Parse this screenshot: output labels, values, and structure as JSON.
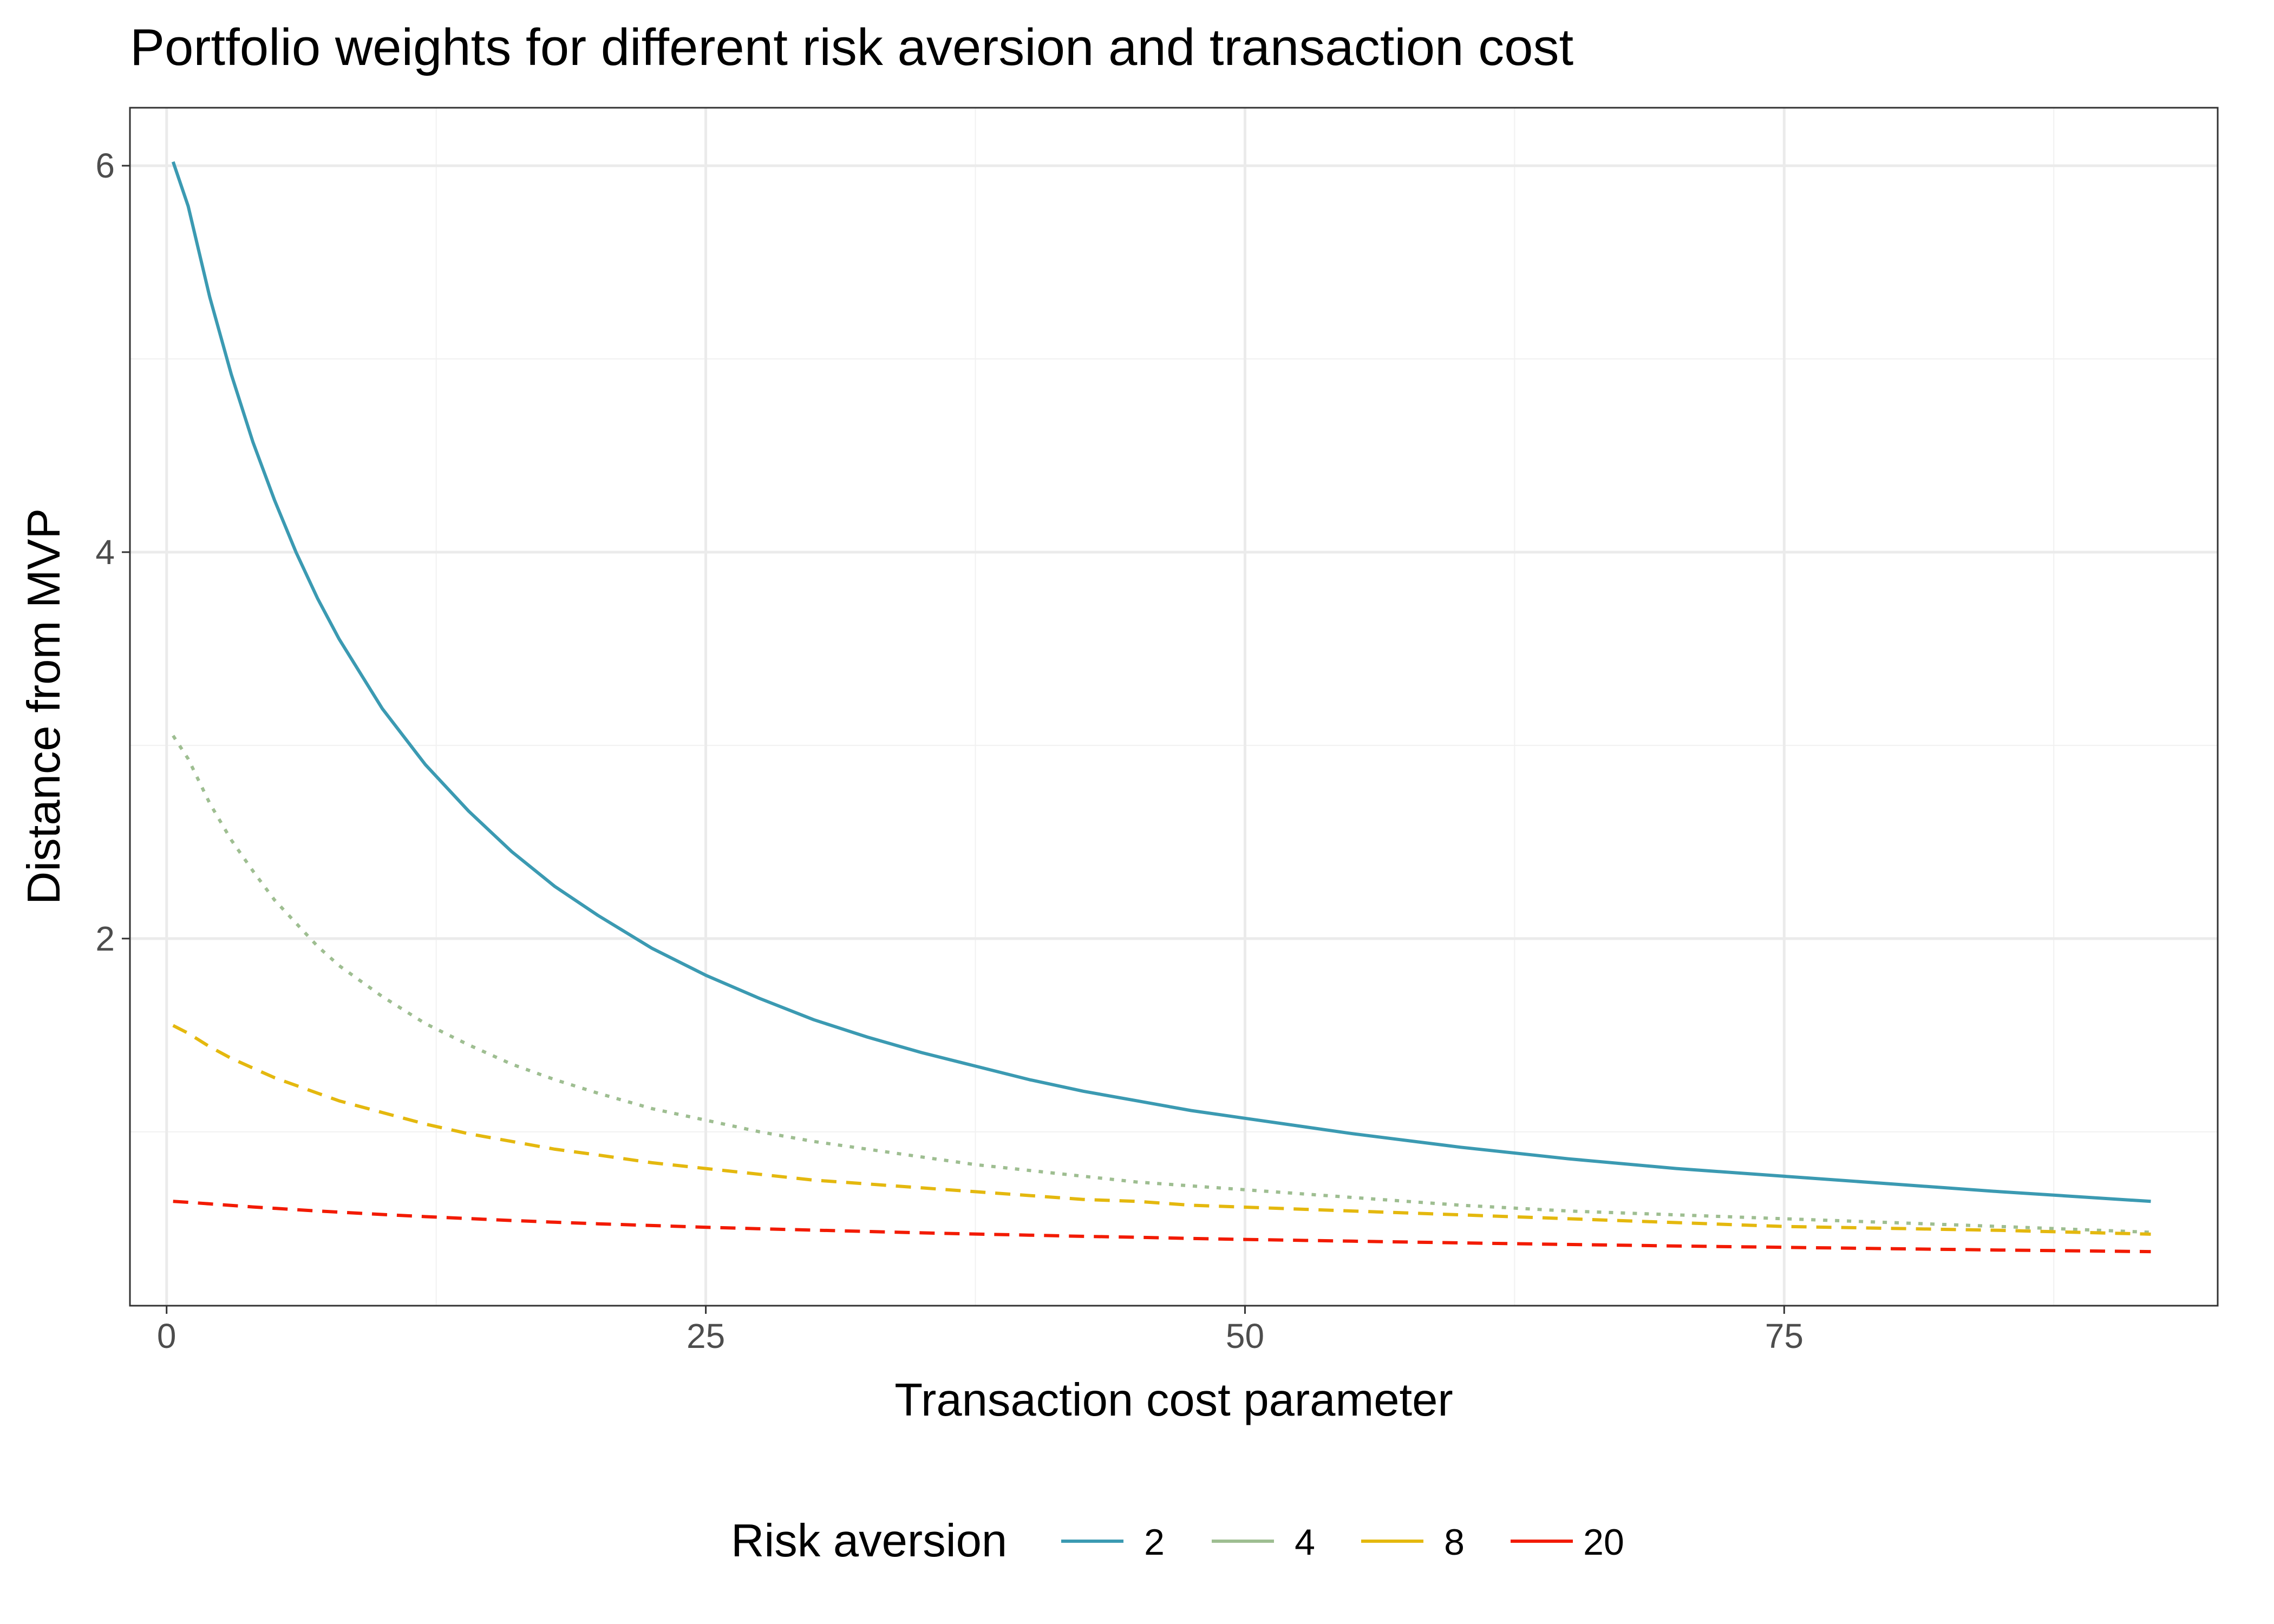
{
  "chart_data": {
    "type": "line",
    "title": "Portfolio weights for different risk aversion and transaction cost",
    "xlabel": "Transaction cost parameter",
    "ylabel": "Distance from MVP",
    "xlim": [
      -1.7,
      95.1
    ],
    "ylim": [
      0.1,
      6.3
    ],
    "x_ticks": [
      0,
      25,
      50,
      75
    ],
    "y_ticks": [
      2,
      4,
      6
    ],
    "grid": true,
    "legend": {
      "title": "Risk aversion",
      "position": "bottom"
    },
    "x": [
      0.3,
      1,
      2,
      3,
      4,
      5,
      6,
      7,
      8,
      10,
      12,
      14,
      16,
      18,
      20,
      22.5,
      25,
      27.5,
      30,
      32.5,
      35,
      37.5,
      40,
      42.5,
      45,
      47.5,
      50,
      55,
      60,
      65,
      70,
      75,
      80,
      85,
      92
    ],
    "series": [
      {
        "name": "2",
        "color": "#3b9ab2",
        "dash": "solid",
        "values": [
          6.02,
          5.79,
          5.32,
          4.92,
          4.57,
          4.27,
          4.0,
          3.76,
          3.55,
          3.19,
          2.9,
          2.66,
          2.45,
          2.27,
          2.12,
          1.95,
          1.81,
          1.69,
          1.58,
          1.49,
          1.41,
          1.34,
          1.27,
          1.21,
          1.16,
          1.11,
          1.07,
          0.99,
          0.92,
          0.86,
          0.81,
          0.77,
          0.73,
          0.69,
          0.64
        ]
      },
      {
        "name": "4",
        "color": "#9ebe91",
        "dash": "dotted",
        "values": [
          3.05,
          2.93,
          2.7,
          2.51,
          2.35,
          2.2,
          2.08,
          1.96,
          1.86,
          1.7,
          1.56,
          1.45,
          1.35,
          1.27,
          1.2,
          1.12,
          1.06,
          1.0,
          0.95,
          0.91,
          0.87,
          0.83,
          0.8,
          0.77,
          0.74,
          0.72,
          0.7,
          0.66,
          0.62,
          0.59,
          0.57,
          0.55,
          0.53,
          0.51,
          0.48
        ]
      },
      {
        "name": "8",
        "color": "#e4b80e",
        "dash": "dashed",
        "values": [
          1.55,
          1.51,
          1.44,
          1.38,
          1.33,
          1.28,
          1.24,
          1.2,
          1.16,
          1.1,
          1.04,
          0.99,
          0.95,
          0.91,
          0.88,
          0.84,
          0.81,
          0.78,
          0.75,
          0.73,
          0.71,
          0.69,
          0.67,
          0.65,
          0.64,
          0.62,
          0.61,
          0.59,
          0.57,
          0.55,
          0.53,
          0.51,
          0.5,
          0.49,
          0.47
        ]
      },
      {
        "name": "20",
        "color": "#f21a00",
        "dash": "dashed",
        "values": [
          0.64,
          0.635,
          0.627,
          0.619,
          0.611,
          0.604,
          0.597,
          0.59,
          0.584,
          0.572,
          0.561,
          0.551,
          0.541,
          0.532,
          0.524,
          0.515,
          0.506,
          0.498,
          0.491,
          0.484,
          0.477,
          0.471,
          0.465,
          0.459,
          0.454,
          0.448,
          0.443,
          0.434,
          0.425,
          0.417,
          0.409,
          0.402,
          0.395,
          0.388,
          0.38
        ]
      }
    ]
  }
}
